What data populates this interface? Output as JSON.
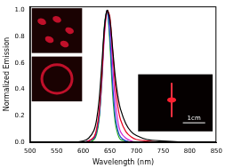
{
  "chart_data": {
    "type": "line",
    "x_label": "Wavelength (nm)",
    "y_label": "Normalized Emission",
    "x": [
      500,
      580,
      600,
      610,
      620,
      625,
      630,
      635,
      640,
      645,
      650,
      655,
      660,
      665,
      670,
      680,
      690,
      700,
      720,
      750,
      800,
      850
    ],
    "series": [
      {
        "color": "#000000",
        "values": [
          0,
          0,
          0.01,
          0.03,
          0.09,
          0.17,
          0.33,
          0.6,
          0.88,
          1.0,
          0.93,
          0.72,
          0.5,
          0.35,
          0.25,
          0.14,
          0.08,
          0.05,
          0.02,
          0.01,
          0,
          0
        ]
      },
      {
        "color": "#e8001c",
        "values": [
          0,
          0,
          0,
          0.01,
          0.04,
          0.1,
          0.24,
          0.52,
          0.85,
          1.0,
          0.95,
          0.7,
          0.44,
          0.27,
          0.17,
          0.08,
          0.04,
          0.02,
          0.01,
          0,
          0,
          0
        ]
      },
      {
        "color": "#1f3fd8",
        "values": [
          0,
          0,
          0,
          0.01,
          0.03,
          0.08,
          0.2,
          0.5,
          0.88,
          1.0,
          0.8,
          0.45,
          0.2,
          0.09,
          0.04,
          0.01,
          0,
          0,
          0,
          0,
          0,
          0
        ]
      },
      {
        "color": "#1fa81f",
        "values": [
          0,
          0,
          0,
          0,
          0.02,
          0.06,
          0.18,
          0.48,
          0.9,
          1.0,
          0.75,
          0.38,
          0.15,
          0.06,
          0.02,
          0.01,
          0,
          0,
          0,
          0,
          0,
          0
        ]
      },
      {
        "color": "#d020d0",
        "values": [
          0,
          0,
          0,
          0.01,
          0.03,
          0.08,
          0.2,
          0.46,
          0.82,
          1.0,
          0.9,
          0.6,
          0.32,
          0.16,
          0.08,
          0.03,
          0.01,
          0,
          0,
          0,
          0,
          0
        ]
      }
    ],
    "xlim": [
      500,
      850
    ],
    "xticks": [
      500,
      550,
      600,
      650,
      700,
      750,
      800,
      850
    ],
    "ylim": [
      0,
      1.03
    ],
    "yticks": [
      {
        "value": 0,
        "label": "0.0"
      },
      0.2,
      0.4,
      0.6,
      0.8,
      {
        "value": 1,
        "label": "1.0"
      }
    ],
    "grid": false,
    "annotations": [
      "1cm"
    ]
  }
}
